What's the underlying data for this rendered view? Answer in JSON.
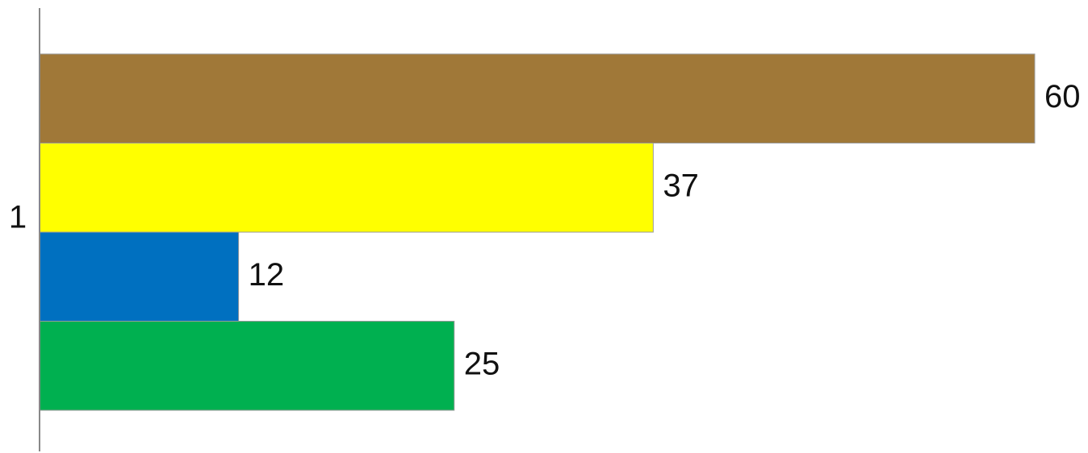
{
  "chart_data": {
    "type": "bar",
    "orientation": "horizontal",
    "categories": [
      "1"
    ],
    "series": [
      {
        "values": [
          60
        ],
        "color": "#A07838"
      },
      {
        "values": [
          37
        ],
        "color": "#FFFF00"
      },
      {
        "values": [
          12
        ],
        "color": "#0070C0"
      },
      {
        "values": [
          25
        ],
        "color": "#00B050"
      }
    ],
    "data_labels": [
      "60",
      "37",
      "12",
      "25"
    ],
    "xlim": [
      0,
      60
    ],
    "title": "",
    "xlabel": "",
    "ylabel": "",
    "grid": false,
    "legend": "none"
  }
}
